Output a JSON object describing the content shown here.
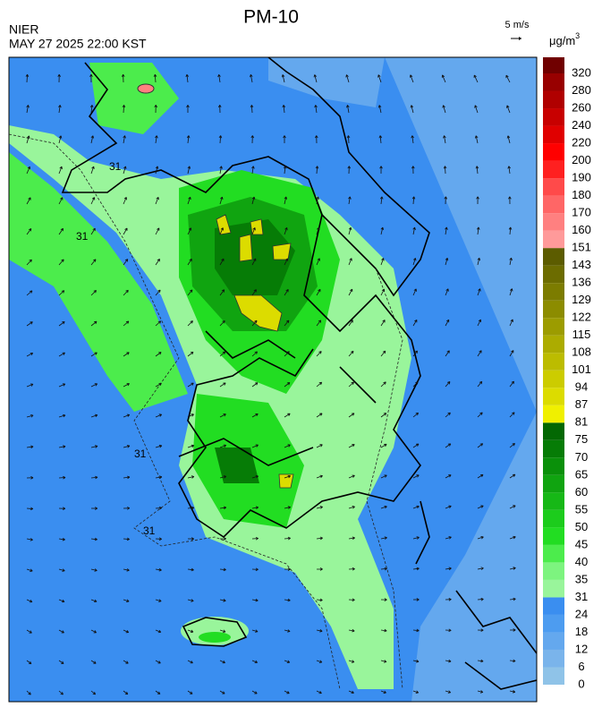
{
  "header": {
    "title": "PM-10",
    "source": "NIER",
    "datetime": "MAY 27 2025 22:00 KST",
    "wind_scale": "5 m/s"
  },
  "legend": {
    "unit": "μg/m",
    "unit_power": "3",
    "levels": [
      0,
      6,
      12,
      18,
      24,
      31,
      35,
      40,
      45,
      50,
      55,
      60,
      65,
      70,
      75,
      81,
      87,
      94,
      101,
      108,
      115,
      122,
      129,
      136,
      143,
      151,
      160,
      170,
      180,
      190,
      200,
      220,
      240,
      260,
      280,
      320
    ],
    "colors": [
      "#8fc3e8",
      "#7ab4eb",
      "#64a8ee",
      "#4d9cf0",
      "#3a8ef0",
      "#99f59b",
      "#7df47f",
      "#4cec4c",
      "#22dd22",
      "#1ccc1c",
      "#16b816",
      "#10a410",
      "#0a900a",
      "#067c06",
      "#036803",
      "#f0f000",
      "#dcdc00",
      "#cccc00",
      "#bcbc00",
      "#acac00",
      "#9c9c00",
      "#8c8c00",
      "#7c7c00",
      "#6c6c00",
      "#5c5c00",
      "#ff9a9a",
      "#ff8080",
      "#ff6666",
      "#ff4a4a",
      "#ff2020",
      "#ff0000",
      "#e00000",
      "#c80000",
      "#b00000",
      "#980000",
      "#700000"
    ]
  },
  "map": {
    "contour_labels": [
      31,
      31,
      31,
      31
    ]
  }
}
